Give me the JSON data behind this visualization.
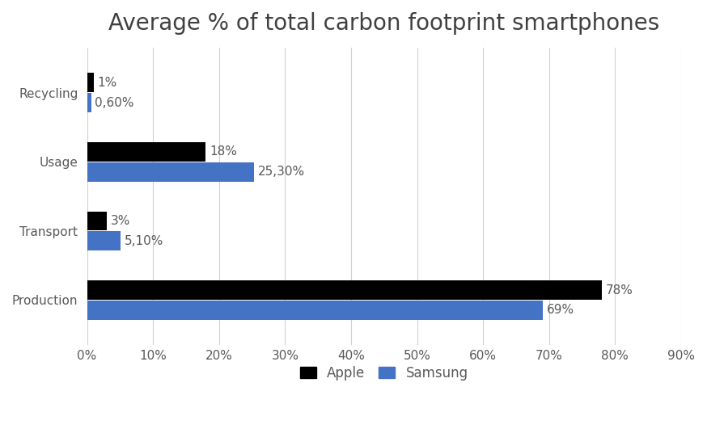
{
  "title": "Average % of total carbon footprint smartphones",
  "categories": [
    "Production",
    "Transport",
    "Usage",
    "Recycling"
  ],
  "apple_values": [
    78,
    3,
    18,
    1
  ],
  "samsung_values": [
    69,
    5.1,
    25.3,
    0.6
  ],
  "apple_labels": [
    "78%",
    "3%",
    "18%",
    "1%"
  ],
  "samsung_labels": [
    "69%",
    "5,10%",
    "25,30%",
    "0,60%"
  ],
  "apple_color": "#000000",
  "samsung_color": "#4472C4",
  "xlim": [
    0,
    90
  ],
  "xticks": [
    0,
    10,
    20,
    30,
    40,
    50,
    60,
    70,
    80,
    90
  ],
  "xtick_labels": [
    "0%",
    "10%",
    "20%",
    "30%",
    "40%",
    "50%",
    "60%",
    "70%",
    "80%",
    "90%"
  ],
  "bar_height": 0.28,
  "title_fontsize": 20,
  "label_fontsize": 11,
  "tick_fontsize": 11,
  "legend_fontsize": 12,
  "background_color": "#ffffff",
  "grid_color": "#d0d0d0",
  "text_color": "#595959"
}
